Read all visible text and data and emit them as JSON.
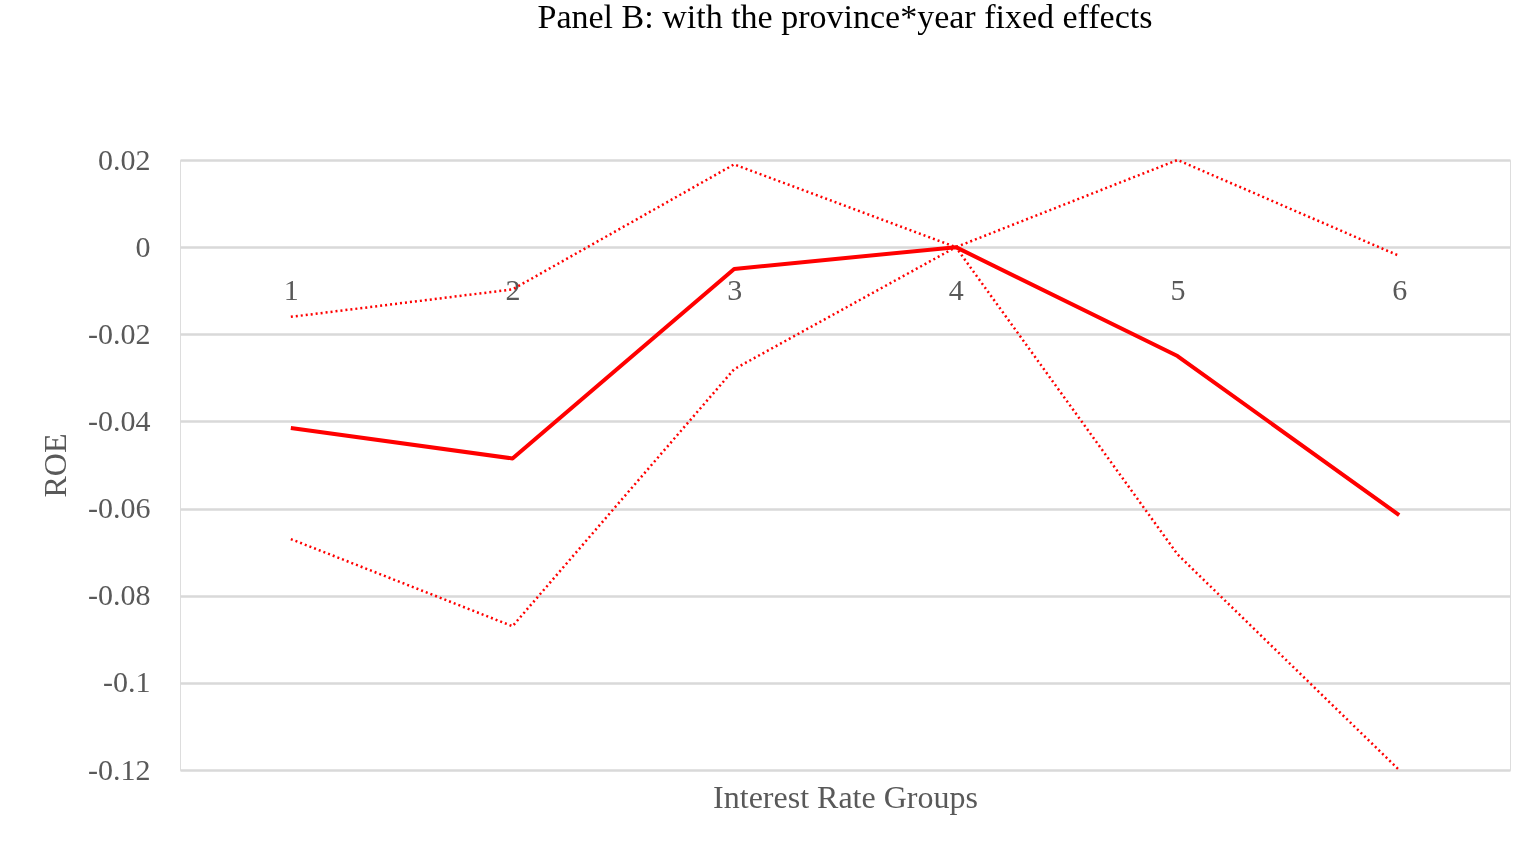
{
  "chart_data": {
    "type": "line",
    "title": "Panel B: with the province*year fixed effects",
    "xlabel": "Interest Rate Groups",
    "ylabel": "ROE",
    "categories": [
      "1",
      "2",
      "3",
      "4",
      "5",
      "6"
    ],
    "series": [
      {
        "color": "#ff0000",
        "line_style": "solid",
        "values": [
          -0.0415,
          -0.0485,
          -0.005,
          0,
          -0.025,
          -0.0615
        ]
      },
      {
        "color": "#ff0000",
        "line_style": "dotted",
        "values": [
          -0.016,
          -0.0097,
          0.019,
          0,
          0.02,
          -0.002
        ]
      },
      {
        "color": "#ff0000",
        "line_style": "dotted",
        "values": [
          -0.067,
          -0.087,
          -0.028,
          0,
          -0.0705,
          -0.12
        ]
      }
    ],
    "ylim": [
      -0.12,
      0.02
    ],
    "yticks": [
      0.02,
      0,
      -0.02,
      -0.04,
      -0.06,
      -0.08,
      -0.1,
      -0.12
    ],
    "grid": "y",
    "marker": "none"
  }
}
